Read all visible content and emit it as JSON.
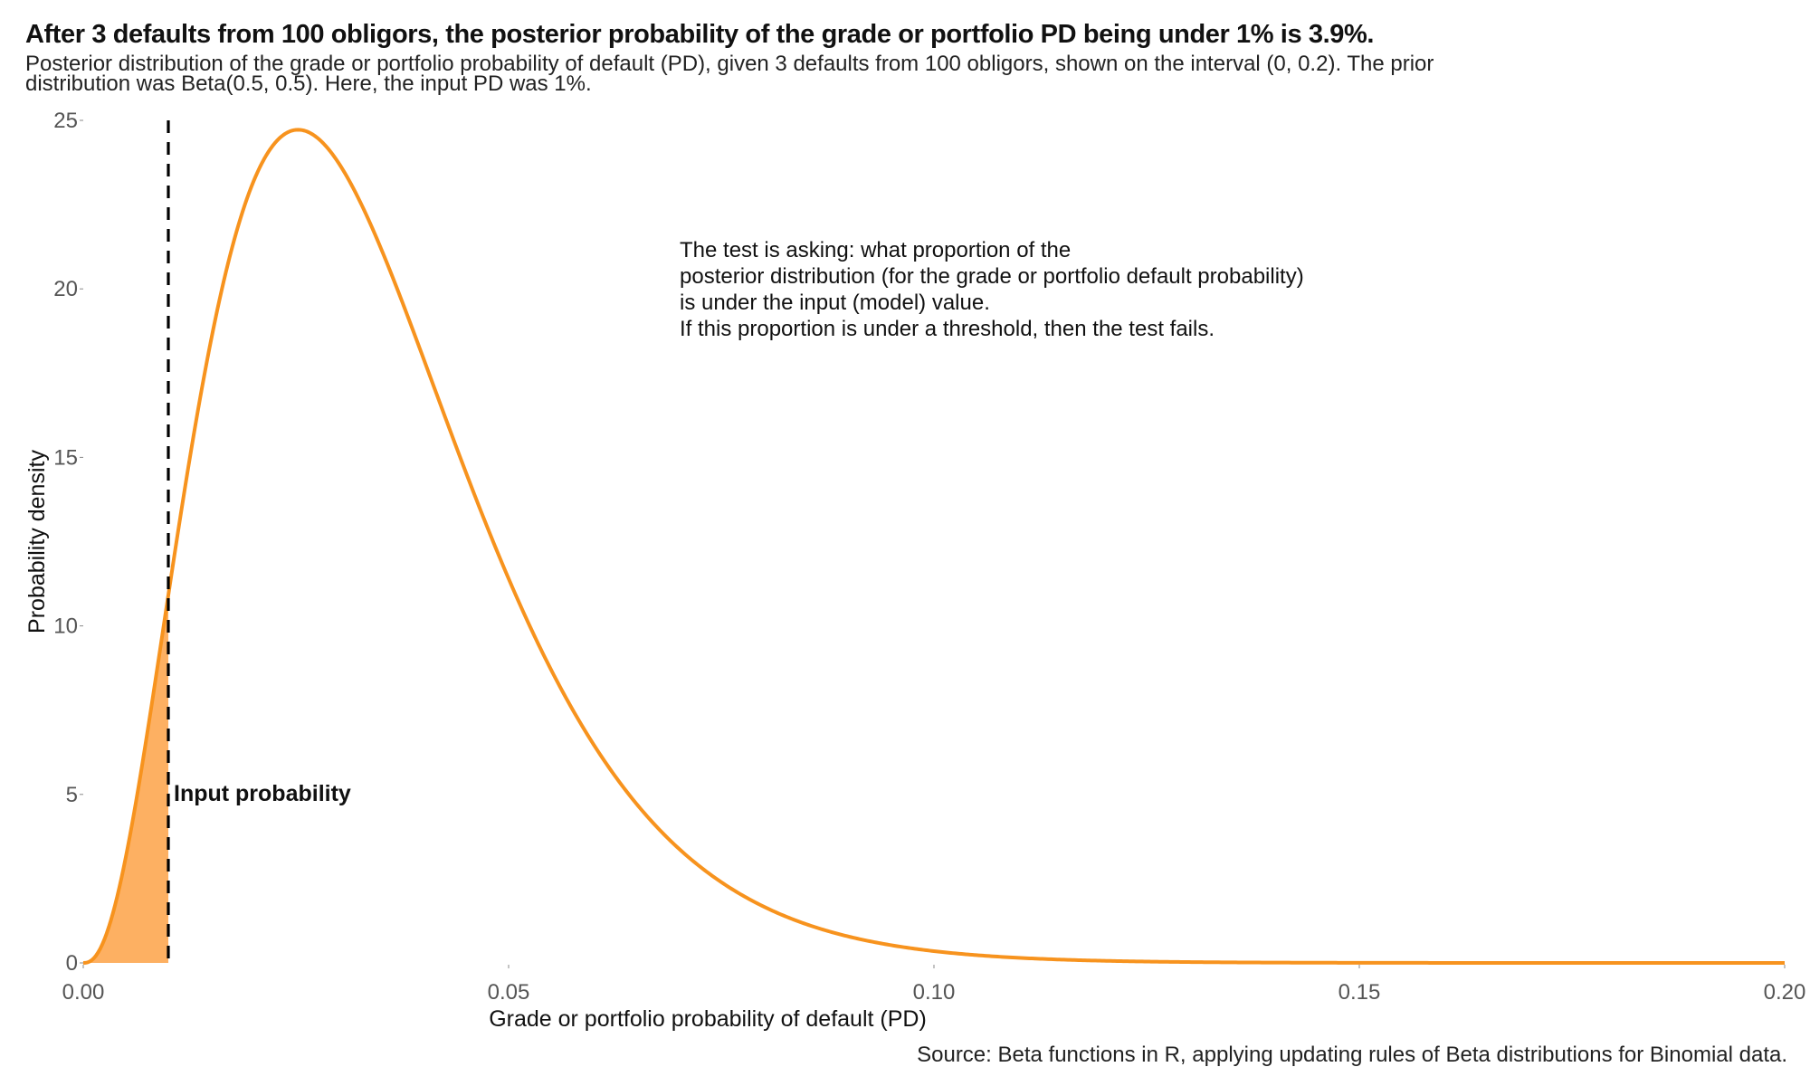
{
  "header": {
    "title": "After 3 defaults from 100 obligors, the posterior probability of the grade or portfolio PD being under 1% is 3.9%.",
    "subtitle": "Posterior distribution of the grade or portfolio probability of default (PD), given 3 defaults from 100 obligors, shown on the interval (0, 0.2). The prior distribution was Beta(0.5, 0.5). Here, the input PD was 1%."
  },
  "footer": {
    "source": "Source: Beta functions in R, applying updating rules of Beta distributions for Binomial data."
  },
  "chart_data": {
    "type": "area",
    "title": "After 3 defaults from 100 obligors, the posterior probability of the grade or portfolio PD being under 1% is 3.9%.",
    "xlabel": "Grade or portfolio probability of default (PD)",
    "ylabel": "Probability density",
    "xlim": [
      0,
      0.2
    ],
    "ylim": [
      0,
      25
    ],
    "x_ticks": [
      0,
      0.05,
      0.1,
      0.15,
      0.2
    ],
    "x_tick_labels": [
      "0.00",
      "0.05",
      "0.10",
      "0.15",
      "0.20"
    ],
    "y_ticks": [
      0,
      5,
      10,
      15,
      20,
      25
    ],
    "y_tick_labels": [
      "0",
      "5",
      "10",
      "15",
      "20",
      "25"
    ],
    "grid": false,
    "distribution": {
      "family": "Beta",
      "alpha": 3.5,
      "beta": 97.5
    },
    "reference_line": {
      "x": 0.01,
      "label": "Input probability",
      "style": "dashed"
    },
    "shaded_region": {
      "from": 0,
      "to": 0.01
    },
    "annotation": [
      "The test is asking: what proportion of the",
      "posterior distribution (for the grade or portfolio default probability)",
      "is under the input (model) value.",
      "If this proportion is under a threshold, then the test fails."
    ],
    "colors": {
      "curve": "#F7931E",
      "fill": "#FDB062",
      "reference_line": "#000000"
    }
  }
}
